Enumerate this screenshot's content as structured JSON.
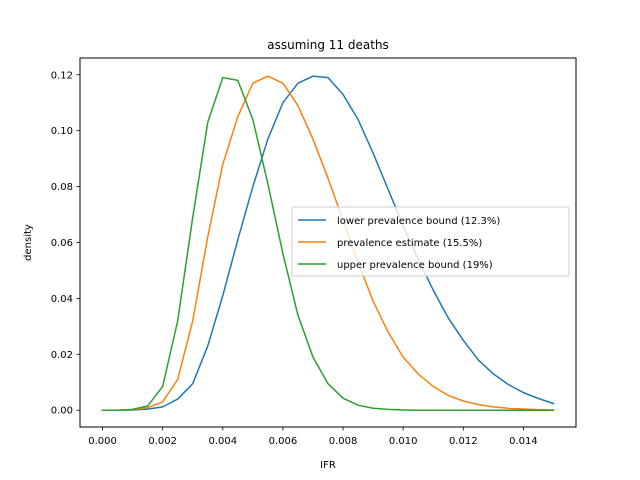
{
  "chart_data": {
    "type": "line",
    "title": "assuming 11 deaths",
    "xlabel": "IFR",
    "ylabel": "density",
    "xlim": [
      -0.00075,
      0.01575
    ],
    "ylim": [
      -0.006,
      0.126
    ],
    "xticks": [
      "0.000",
      "0.002",
      "0.004",
      "0.006",
      "0.008",
      "0.010",
      "0.012",
      "0.014"
    ],
    "xtick_values": [
      0,
      0.002,
      0.004,
      0.006,
      0.008,
      0.01,
      0.012,
      0.014
    ],
    "yticks": [
      "0.00",
      "0.02",
      "0.04",
      "0.06",
      "0.08",
      "0.10",
      "0.12"
    ],
    "ytick_values": [
      0,
      0.02,
      0.04,
      0.06,
      0.08,
      0.1,
      0.12
    ],
    "grid": false,
    "legend_position": "center-right",
    "series": [
      {
        "name": "lower prevalence bound (12.3%)",
        "color": "#1f77b4",
        "x": [
          0,
          0.0005,
          0.001,
          0.0015,
          0.002,
          0.0025,
          0.003,
          0.0035,
          0.004,
          0.0045,
          0.005,
          0.0055,
          0.006,
          0.0065,
          0.007,
          0.0075,
          0.008,
          0.0085,
          0.009,
          0.0095,
          0.01,
          0.0105,
          0.011,
          0.0115,
          0.012,
          0.0125,
          0.013,
          0.0135,
          0.014,
          0.0145,
          0.015
        ],
        "y": [
          0,
          0,
          0.0001,
          0.0004,
          0.0012,
          0.004,
          0.0095,
          0.023,
          0.041,
          0.061,
          0.08,
          0.097,
          0.11,
          0.117,
          0.1195,
          0.119,
          0.113,
          0.104,
          0.092,
          0.079,
          0.066,
          0.054,
          0.043,
          0.033,
          0.025,
          0.018,
          0.013,
          0.0092,
          0.0063,
          0.0042,
          0.0024
        ]
      },
      {
        "name": "prevalence estimate (15.5%)",
        "color": "#ff7f0e",
        "x": [
          0,
          0.0005,
          0.001,
          0.0015,
          0.002,
          0.0025,
          0.003,
          0.0035,
          0.004,
          0.0045,
          0.005,
          0.0055,
          0.006,
          0.0065,
          0.007,
          0.0075,
          0.008,
          0.0085,
          0.009,
          0.0095,
          0.01,
          0.0105,
          0.011,
          0.0115,
          0.012,
          0.0125,
          0.013,
          0.0135,
          0.014,
          0.0145,
          0.015
        ],
        "y": [
          0,
          0,
          0.0002,
          0.0009,
          0.003,
          0.011,
          0.032,
          0.062,
          0.088,
          0.105,
          0.117,
          0.1195,
          0.117,
          0.109,
          0.097,
          0.083,
          0.068,
          0.053,
          0.039,
          0.028,
          0.019,
          0.013,
          0.0085,
          0.0053,
          0.0033,
          0.002,
          0.0012,
          0.0007,
          0.0004,
          0.0002,
          0.0001
        ]
      },
      {
        "name": "upper prevalence bound (19%)",
        "color": "#2ca02c",
        "x": [
          0,
          0.0005,
          0.001,
          0.0015,
          0.002,
          0.0025,
          0.003,
          0.0035,
          0.004,
          0.0045,
          0.005,
          0.0055,
          0.006,
          0.0065,
          0.007,
          0.0075,
          0.008,
          0.0085,
          0.009,
          0.0095,
          0.01,
          0.0105,
          0.011,
          0.0115,
          0.012,
          0.0125,
          0.013,
          0.0135,
          0.014,
          0.0145,
          0.015
        ],
        "y": [
          0,
          0,
          0.0003,
          0.0015,
          0.0085,
          0.032,
          0.069,
          0.103,
          0.119,
          0.118,
          0.104,
          0.081,
          0.056,
          0.034,
          0.019,
          0.0095,
          0.0043,
          0.0018,
          0.0007,
          0.0003,
          0.0001,
          0,
          0,
          0,
          0,
          0,
          0,
          0,
          0,
          0,
          0
        ]
      }
    ]
  }
}
